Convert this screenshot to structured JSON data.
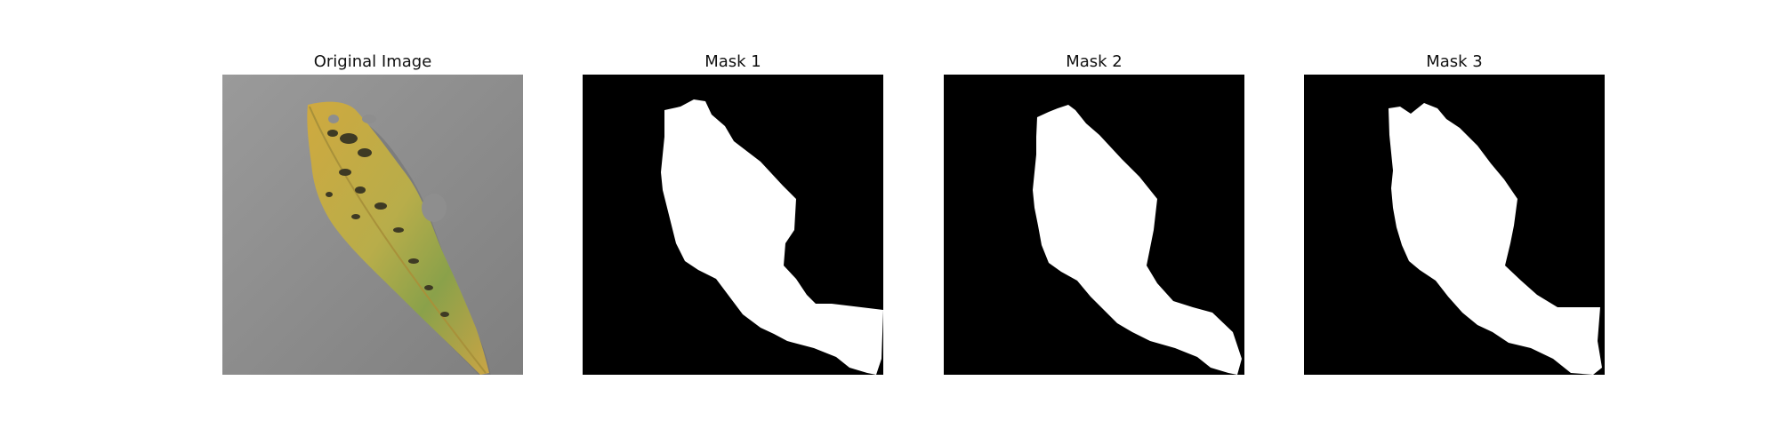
{
  "panels": [
    {
      "title": "Original Image",
      "image": "leaf-photo",
      "colors": {
        "background": "#8e8e8e",
        "leaf_yellow": "#cfa93f",
        "leaf_green": "#8aa14a",
        "spots": "#3e3a24"
      }
    },
    {
      "title": "Mask 1",
      "image": "binary-mask",
      "colors": {
        "background": "#000000",
        "foreground": "#ffffff"
      }
    },
    {
      "title": "Mask 2",
      "image": "binary-mask",
      "colors": {
        "background": "#000000",
        "foreground": "#ffffff"
      }
    },
    {
      "title": "Mask 3",
      "image": "binary-mask",
      "colors": {
        "background": "#000000",
        "foreground": "#ffffff"
      }
    }
  ]
}
